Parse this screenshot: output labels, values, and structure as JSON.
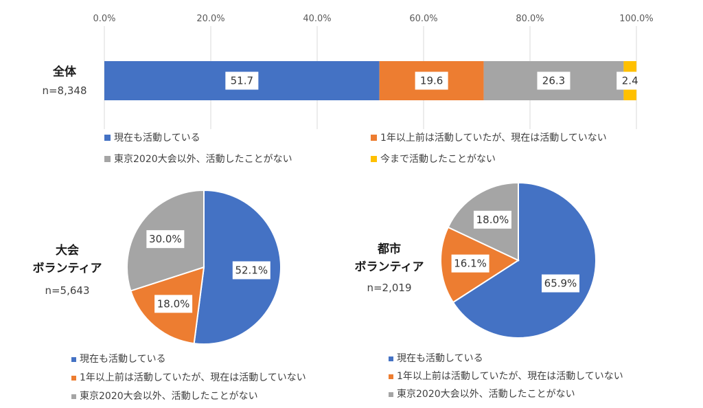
{
  "chart_data": [
    {
      "type": "bar",
      "orientation": "horizontal",
      "stacked": true,
      "group_title": "全体",
      "n_label": "n=8,348",
      "x_ticks": [
        "0.0%",
        "20.0%",
        "40.0%",
        "60.0%",
        "80.0%",
        "100.0%"
      ],
      "xlim": [
        0,
        100
      ],
      "grid": true,
      "series": [
        {
          "name": "現在も活動している",
          "value": 51.7,
          "label": "51.7",
          "color": "#4472C4"
        },
        {
          "name": "1年以上前は活動していたが、現在は活動していない",
          "value": 19.6,
          "label": "19.6",
          "color": "#ED7D31"
        },
        {
          "name": "東京2020大会以外、活動したことがない",
          "value": 26.3,
          "label": "26.3",
          "color": "#A5A5A5"
        },
        {
          "name": "今まで活動したことがない",
          "value": 2.4,
          "label": "2.4",
          "color": "#FFC000"
        }
      ],
      "legend_position": "bottom"
    },
    {
      "type": "pie",
      "group_title_lines": [
        "大会",
        "ボランティア"
      ],
      "n_label": "n=5,643",
      "slices": [
        {
          "name": "現在も活動している",
          "value": 52.1,
          "label": "52.1%",
          "color": "#4472C4"
        },
        {
          "name": "1年以上前は活動していたが、現在は活動していない",
          "value": 18.0,
          "label": "18.0%",
          "color": "#ED7D31"
        },
        {
          "name": "東京2020大会以外、活動したことがない",
          "value": 30.0,
          "label": "30.0%",
          "color": "#A5A5A5"
        }
      ],
      "legend_position": "bottom"
    },
    {
      "type": "pie",
      "group_title_lines": [
        "都市",
        "ボランティア"
      ],
      "n_label": "n=2,019",
      "slices": [
        {
          "name": "現在も活動している",
          "value": 65.9,
          "label": "65.9%",
          "color": "#4472C4"
        },
        {
          "name": "1年以上前は活動していたが、現在は活動していない",
          "value": 16.1,
          "label": "16.1%",
          "color": "#ED7D31"
        },
        {
          "name": "東京2020大会以外、活動したことがない",
          "value": 18.0,
          "label": "18.0%",
          "color": "#A5A5A5"
        }
      ],
      "legend_position": "bottom"
    }
  ]
}
